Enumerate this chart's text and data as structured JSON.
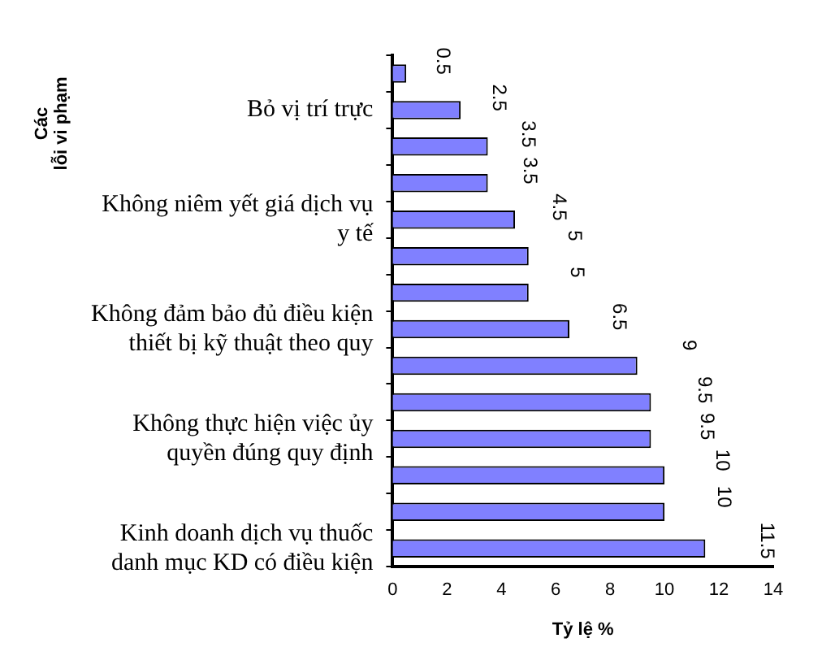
{
  "chart_data": {
    "type": "bar",
    "orientation": "horizontal",
    "ylabel": "Các lỗi vi phạm",
    "xlabel": "Tỷ lệ %",
    "categories": [
      null,
      "Bỏ vị trí trực",
      null,
      null,
      "Không niêm yết giá dịch vụ y tế",
      null,
      null,
      "Không đảm bảo đủ điều kiện thiết bị kỹ thuật theo quy",
      null,
      null,
      "Không thực hiện việc ủy quyền đúng quy định",
      null,
      null,
      "Kinh doanh dịch vụ thuốc danh mục KD có điều kiện"
    ],
    "values": [
      0.5,
      2.5,
      3.5,
      3.5,
      4.5,
      5,
      5,
      6.5,
      9,
      9.5,
      9.5,
      10,
      10,
      11.5
    ],
    "color": "#8080ff",
    "xlim": [
      0,
      14
    ],
    "xticks": [
      0,
      2,
      4,
      6,
      8,
      10,
      12,
      14
    ],
    "grid": false,
    "legend": false,
    "data_labels": true
  }
}
